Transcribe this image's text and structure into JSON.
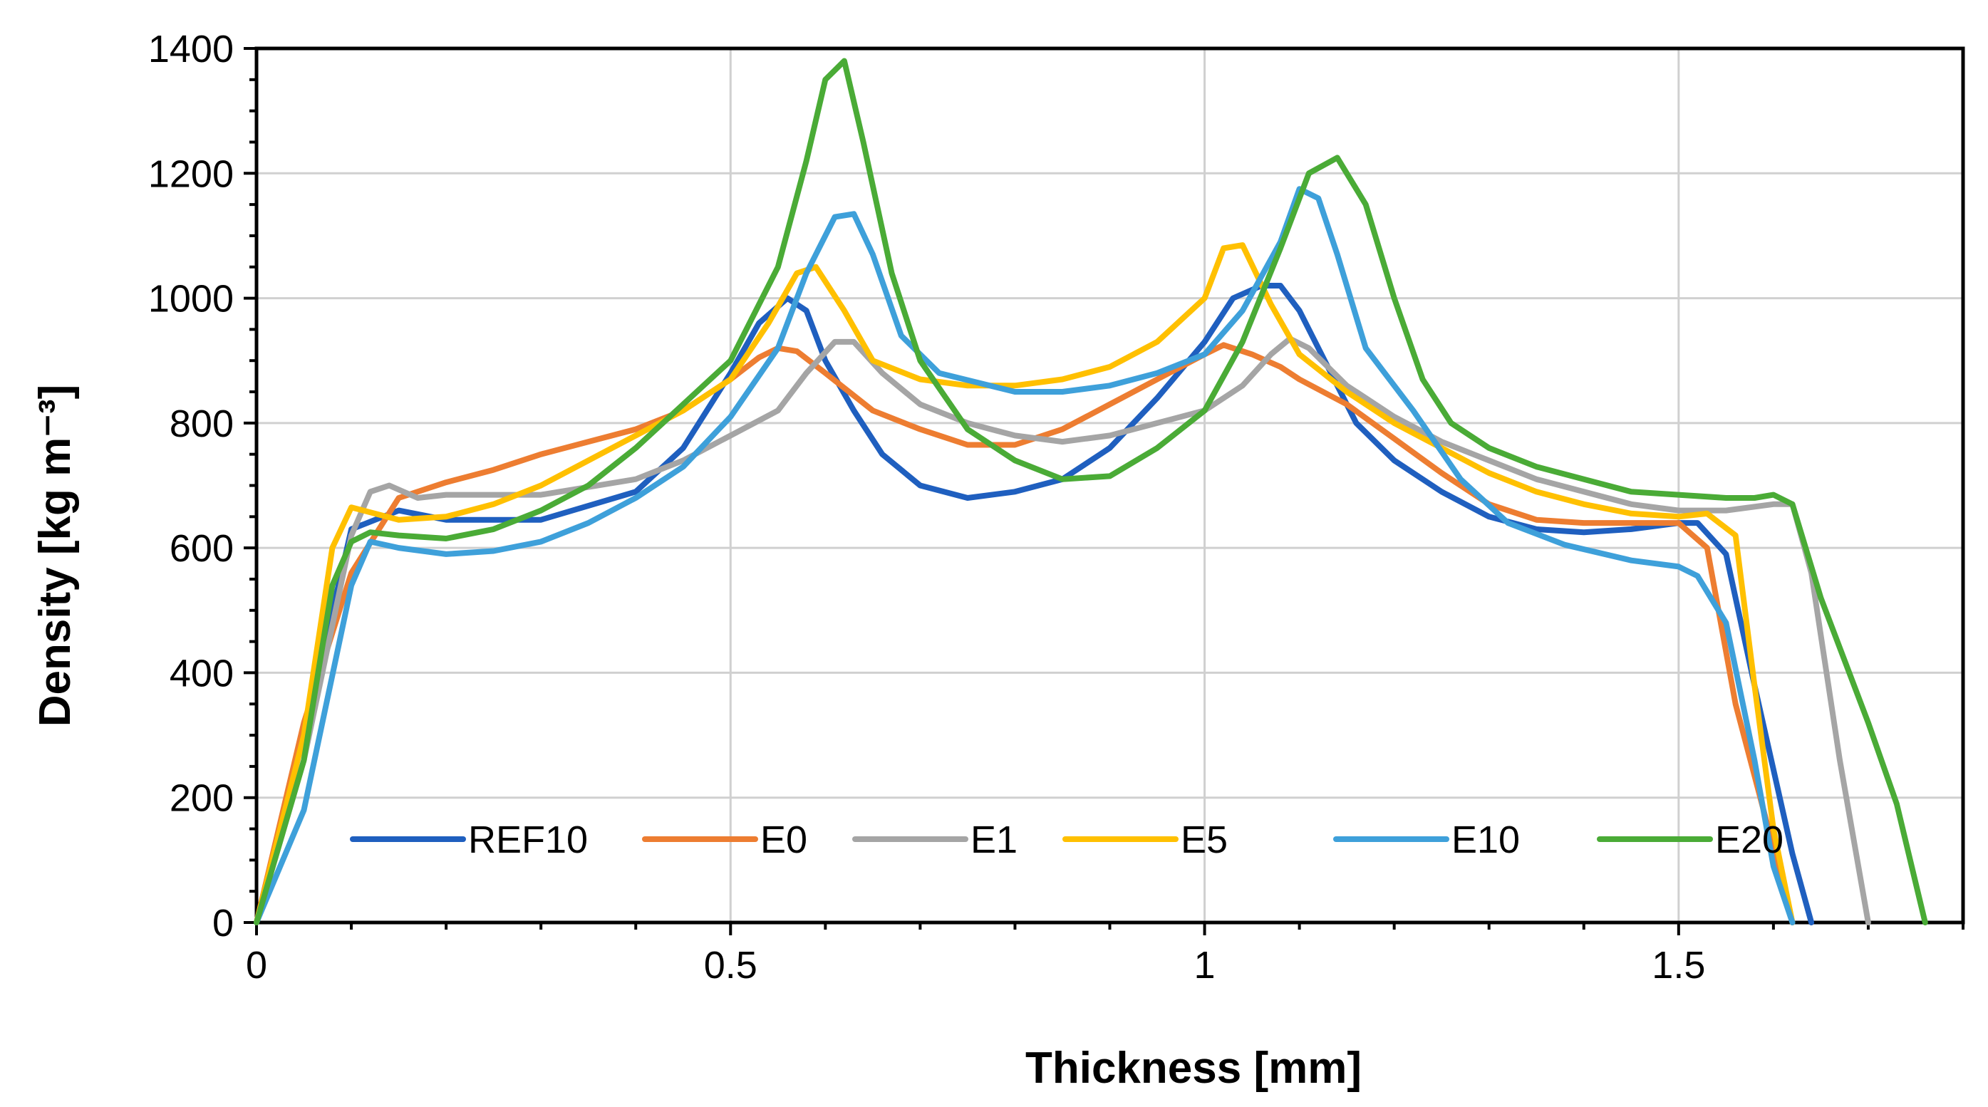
{
  "chart_data": {
    "type": "line",
    "xlabel": "Thickness [mm]",
    "ylabel": "Density [kg m⁻³]",
    "xlim": [
      0,
      1.8
    ],
    "ylim": [
      0,
      1400
    ],
    "x_ticks": [
      0,
      0.5,
      1,
      1.5
    ],
    "x_tick_labels": [
      "0",
      "0.5",
      "1",
      "1.5"
    ],
    "y_ticks": [
      0,
      200,
      400,
      600,
      800,
      1000,
      1200,
      1400
    ],
    "y_tick_labels": [
      "0",
      "200",
      "400",
      "600",
      "800",
      "1000",
      "1200",
      "1400"
    ],
    "grid": true,
    "legend_position": "bottom-inside",
    "series": [
      {
        "name": "REF10",
        "color": "#1f5fbf",
        "x": [
          0,
          0.05,
          0.1,
          0.15,
          0.2,
          0.3,
          0.4,
          0.45,
          0.5,
          0.53,
          0.56,
          0.58,
          0.6,
          0.63,
          0.66,
          0.7,
          0.75,
          0.8,
          0.85,
          0.9,
          0.95,
          1.0,
          1.03,
          1.06,
          1.08,
          1.1,
          1.13,
          1.16,
          1.2,
          1.25,
          1.3,
          1.35,
          1.4,
          1.45,
          1.5,
          1.52,
          1.55,
          1.58,
          1.62,
          1.64
        ],
        "y": [
          0,
          300,
          630,
          660,
          645,
          645,
          690,
          760,
          880,
          960,
          1000,
          980,
          900,
          820,
          750,
          700,
          680,
          690,
          710,
          760,
          840,
          930,
          1000,
          1020,
          1020,
          980,
          890,
          800,
          740,
          690,
          650,
          630,
          625,
          630,
          640,
          640,
          590,
          380,
          110,
          0
        ]
      },
      {
        "name": "E0",
        "color": "#ed7d31",
        "x": [
          0,
          0.05,
          0.1,
          0.15,
          0.2,
          0.25,
          0.3,
          0.35,
          0.4,
          0.45,
          0.5,
          0.53,
          0.55,
          0.57,
          0.6,
          0.65,
          0.7,
          0.75,
          0.8,
          0.85,
          0.9,
          0.95,
          1.0,
          1.02,
          1.05,
          1.08,
          1.1,
          1.15,
          1.2,
          1.25,
          1.3,
          1.35,
          1.4,
          1.45,
          1.5,
          1.53,
          1.56,
          1.6,
          1.62
        ],
        "y": [
          0,
          320,
          560,
          680,
          705,
          725,
          750,
          770,
          790,
          820,
          870,
          905,
          920,
          915,
          880,
          820,
          790,
          765,
          765,
          790,
          830,
          870,
          910,
          925,
          910,
          890,
          870,
          830,
          775,
          720,
          670,
          645,
          640,
          640,
          640,
          600,
          350,
          120,
          0
        ]
      },
      {
        "name": "E1",
        "color": "#a5a5a5",
        "x": [
          0,
          0.05,
          0.1,
          0.12,
          0.14,
          0.17,
          0.2,
          0.3,
          0.4,
          0.45,
          0.5,
          0.55,
          0.58,
          0.61,
          0.63,
          0.66,
          0.7,
          0.75,
          0.8,
          0.85,
          0.9,
          0.95,
          1.0,
          1.04,
          1.07,
          1.09,
          1.11,
          1.15,
          1.2,
          1.25,
          1.3,
          1.35,
          1.4,
          1.45,
          1.5,
          1.55,
          1.6,
          1.62,
          1.64,
          1.67,
          1.7
        ],
        "y": [
          0,
          260,
          620,
          690,
          700,
          680,
          685,
          685,
          710,
          740,
          780,
          820,
          880,
          930,
          930,
          880,
          830,
          800,
          780,
          770,
          780,
          800,
          820,
          860,
          910,
          935,
          920,
          860,
          810,
          770,
          740,
          710,
          690,
          670,
          660,
          660,
          670,
          670,
          560,
          260,
          0
        ]
      },
      {
        "name": "E5",
        "color": "#ffc000",
        "x": [
          0,
          0.05,
          0.08,
          0.1,
          0.15,
          0.2,
          0.25,
          0.3,
          0.35,
          0.4,
          0.45,
          0.5,
          0.54,
          0.57,
          0.59,
          0.62,
          0.65,
          0.7,
          0.75,
          0.8,
          0.85,
          0.9,
          0.95,
          1.0,
          1.02,
          1.04,
          1.07,
          1.1,
          1.15,
          1.2,
          1.25,
          1.3,
          1.35,
          1.4,
          1.45,
          1.5,
          1.53,
          1.56,
          1.58,
          1.6,
          1.62
        ],
        "y": [
          0,
          300,
          600,
          665,
          645,
          650,
          670,
          700,
          740,
          780,
          820,
          870,
          960,
          1040,
          1050,
          980,
          900,
          870,
          860,
          860,
          870,
          890,
          930,
          1000,
          1080,
          1085,
          990,
          910,
          850,
          800,
          760,
          720,
          690,
          670,
          655,
          650,
          655,
          620,
          380,
          150,
          0
        ]
      },
      {
        "name": "E10",
        "color": "#3ea0da",
        "x": [
          0,
          0.05,
          0.1,
          0.12,
          0.15,
          0.2,
          0.25,
          0.3,
          0.35,
          0.4,
          0.45,
          0.5,
          0.55,
          0.58,
          0.61,
          0.63,
          0.65,
          0.68,
          0.72,
          0.76,
          0.8,
          0.85,
          0.9,
          0.95,
          1.0,
          1.04,
          1.08,
          1.1,
          1.12,
          1.14,
          1.17,
          1.22,
          1.27,
          1.32,
          1.38,
          1.45,
          1.5,
          1.52,
          1.55,
          1.58,
          1.6,
          1.62
        ],
        "y": [
          0,
          180,
          540,
          610,
          600,
          590,
          595,
          610,
          640,
          680,
          730,
          810,
          920,
          1040,
          1130,
          1135,
          1070,
          940,
          880,
          865,
          850,
          850,
          860,
          880,
          910,
          980,
          1090,
          1175,
          1160,
          1070,
          920,
          820,
          710,
          640,
          605,
          580,
          570,
          555,
          480,
          260,
          90,
          0
        ]
      },
      {
        "name": "E20",
        "color": "#4aab36",
        "x": [
          0,
          0.05,
          0.08,
          0.1,
          0.12,
          0.15,
          0.2,
          0.25,
          0.3,
          0.35,
          0.4,
          0.45,
          0.5,
          0.55,
          0.58,
          0.6,
          0.62,
          0.64,
          0.67,
          0.7,
          0.75,
          0.8,
          0.85,
          0.9,
          0.95,
          1.0,
          1.04,
          1.08,
          1.11,
          1.14,
          1.17,
          1.2,
          1.23,
          1.26,
          1.3,
          1.35,
          1.4,
          1.45,
          1.5,
          1.55,
          1.58,
          1.6,
          1.62,
          1.65,
          1.7,
          1.73,
          1.76
        ],
        "y": [
          0,
          260,
          540,
          610,
          625,
          620,
          615,
          630,
          660,
          700,
          760,
          830,
          900,
          1050,
          1220,
          1350,
          1380,
          1250,
          1040,
          900,
          790,
          740,
          710,
          715,
          760,
          820,
          930,
          1080,
          1200,
          1225,
          1150,
          1000,
          870,
          800,
          760,
          730,
          710,
          690,
          685,
          680,
          680,
          685,
          670,
          520,
          320,
          190,
          0
        ]
      }
    ]
  }
}
